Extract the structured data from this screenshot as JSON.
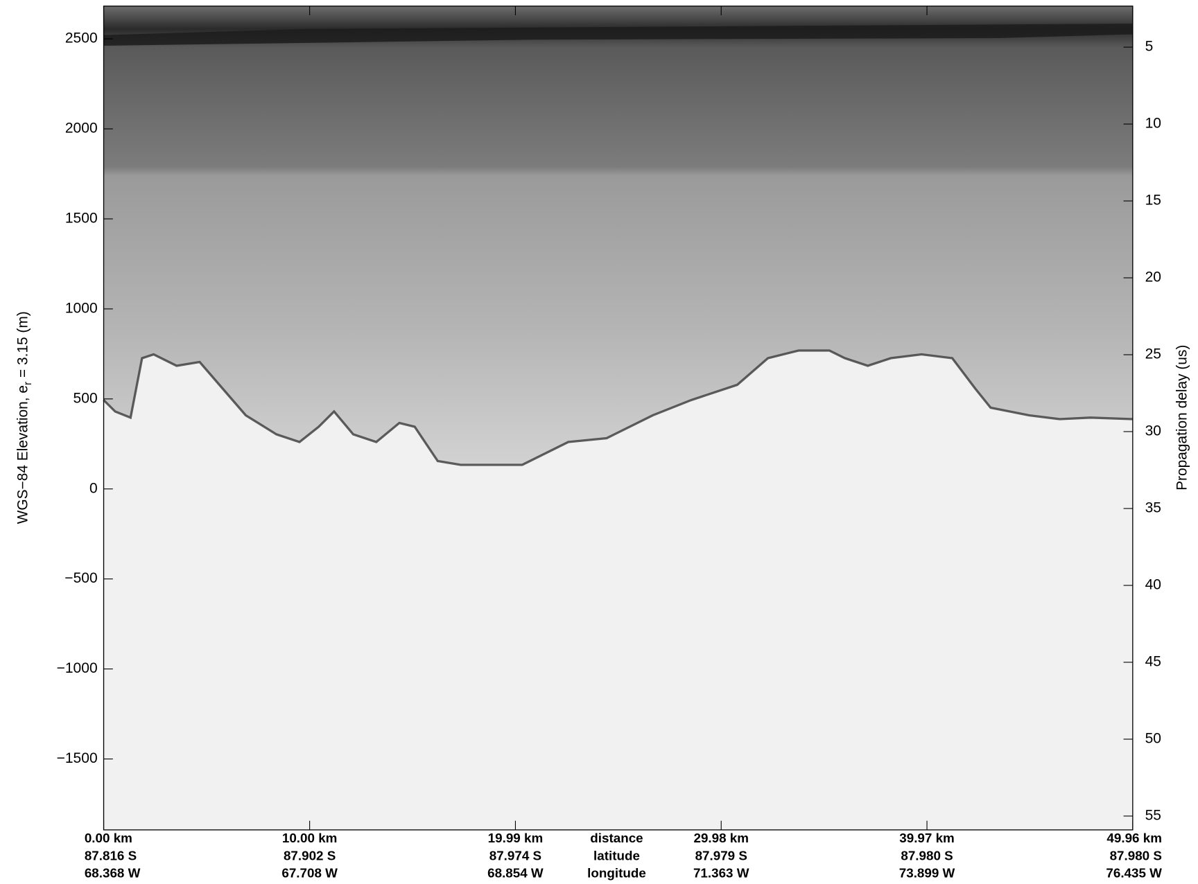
{
  "chart_data": {
    "type": "radargram",
    "ylabel_parts": [
      "WGS−84 Elevation, e",
      "r",
      " = 3.15 (m)"
    ],
    "y2label": "Propagation delay (us)",
    "ylim": [
      -1894,
      2682
    ],
    "yticks": [
      {
        "value": -1500,
        "label": "−1500"
      },
      {
        "value": -1000,
        "label": "−1000"
      },
      {
        "value": -500,
        "label": "−500"
      },
      0,
      500,
      1000,
      1500,
      2000,
      2500
    ],
    "y2lim": [
      55.9,
      2.33
    ],
    "y2ticks": [
      5,
      10,
      15,
      20,
      25,
      30,
      35,
      40,
      45,
      50,
      55
    ],
    "xlim": [
      0,
      49.96
    ],
    "xticks": [
      {
        "value": 0,
        "label": "0.00 km"
      },
      {
        "value": 10,
        "label": "10.00 km"
      },
      {
        "value": 19.99,
        "label": "19.99 km"
      },
      {
        "value": 29.98,
        "label": "29.98 km"
      },
      {
        "value": 39.97,
        "label": "39.97 km"
      },
      {
        "value": 49.96,
        "label": "49.96 km"
      }
    ],
    "latitudes": [
      "87.816 S",
      "87.902 S",
      "87.974 S",
      "87.979 S",
      "87.980 S",
      "87.980 S"
    ],
    "longitudes": [
      "68.368 W",
      "67.708 W",
      "68.854 W",
      "71.363 W",
      "73.899 W",
      "76.435 W"
    ],
    "row_labels": [
      "distance",
      "latitude",
      "longitude"
    ]
  }
}
